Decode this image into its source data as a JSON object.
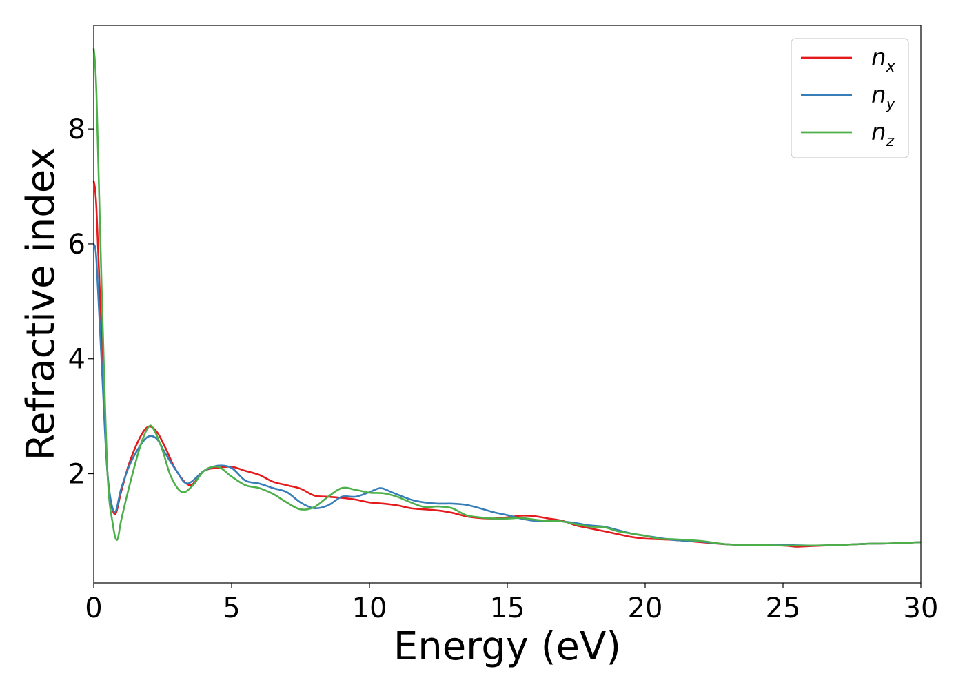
{
  "chart_data": {
    "type": "line",
    "title": "",
    "xlabel": "Energy (eV)",
    "ylabel": "Refractive index",
    "xlim": [
      0,
      30
    ],
    "ylim": [
      0.1,
      9.8
    ],
    "xticks": [
      0,
      5,
      10,
      15,
      20,
      25,
      30
    ],
    "yticks": [
      2,
      4,
      6,
      8
    ],
    "grid": false,
    "legend_position": "top-right",
    "series": [
      {
        "name": "n_x",
        "label_main": "n",
        "label_sub": "x",
        "color": "#e41a1c",
        "x": [
          0,
          0.1,
          0.3,
          0.5,
          0.75,
          1.0,
          1.3,
          1.7,
          2.0,
          2.3,
          2.6,
          3.0,
          3.5,
          4.0,
          4.5,
          5.0,
          5.5,
          6.0,
          6.5,
          7.0,
          7.5,
          8.0,
          8.5,
          9.0,
          9.5,
          10.0,
          10.5,
          11.0,
          11.5,
          12.0,
          12.5,
          13.0,
          13.5,
          14.0,
          14.5,
          15.0,
          15.5,
          16.0,
          16.5,
          17.0,
          17.5,
          18.0,
          18.5,
          19.0,
          19.5,
          20.0,
          20.5,
          21.0,
          21.5,
          22.0,
          23.0,
          24.0,
          25.0,
          25.5,
          26.0,
          27.0,
          28.0,
          29.0,
          30.0
        ],
        "y": [
          7.1,
          6.6,
          4.2,
          2.0,
          1.3,
          1.7,
          2.2,
          2.65,
          2.82,
          2.72,
          2.45,
          2.05,
          1.8,
          2.05,
          2.1,
          2.12,
          2.05,
          1.98,
          1.86,
          1.8,
          1.74,
          1.62,
          1.6,
          1.58,
          1.55,
          1.5,
          1.48,
          1.45,
          1.4,
          1.38,
          1.36,
          1.32,
          1.26,
          1.23,
          1.22,
          1.24,
          1.27,
          1.26,
          1.22,
          1.18,
          1.1,
          1.05,
          1.0,
          0.95,
          0.9,
          0.87,
          0.86,
          0.85,
          0.83,
          0.81,
          0.77,
          0.76,
          0.75,
          0.73,
          0.74,
          0.76,
          0.78,
          0.79,
          0.81
        ]
      },
      {
        "name": "n_y",
        "label_main": "n",
        "label_sub": "y",
        "color": "#377eb8",
        "x": [
          0,
          0.1,
          0.3,
          0.5,
          0.75,
          1.0,
          1.3,
          1.7,
          2.0,
          2.3,
          2.6,
          3.0,
          3.4,
          4.0,
          4.5,
          5.0,
          5.5,
          6.0,
          6.5,
          7.0,
          7.5,
          8.0,
          8.5,
          9.0,
          9.5,
          10.0,
          10.4,
          10.8,
          11.5,
          12.0,
          12.5,
          13.0,
          13.5,
          14.0,
          14.5,
          15.0,
          15.5,
          16.0,
          16.5,
          17.0,
          17.5,
          18.0,
          18.5,
          19.0,
          19.5,
          20.0,
          21.0,
          22.0,
          23.0,
          24.0,
          25.0,
          26.0,
          27.0,
          28.0,
          29.0,
          30.0
        ],
        "y": [
          6.0,
          5.7,
          3.8,
          2.0,
          1.33,
          1.75,
          2.15,
          2.5,
          2.65,
          2.6,
          2.35,
          2.05,
          1.83,
          2.05,
          2.14,
          2.1,
          1.88,
          1.83,
          1.75,
          1.68,
          1.5,
          1.4,
          1.45,
          1.6,
          1.6,
          1.68,
          1.75,
          1.68,
          1.55,
          1.5,
          1.48,
          1.48,
          1.46,
          1.4,
          1.33,
          1.28,
          1.22,
          1.18,
          1.18,
          1.17,
          1.14,
          1.1,
          1.08,
          1.02,
          0.96,
          0.92,
          0.85,
          0.82,
          0.77,
          0.76,
          0.76,
          0.75,
          0.76,
          0.78,
          0.79,
          0.81
        ]
      },
      {
        "name": "n_z",
        "label_main": "n",
        "label_sub": "z",
        "color": "#4daf4a",
        "x": [
          0,
          0.1,
          0.3,
          0.5,
          0.7,
          0.85,
          1.0,
          1.3,
          1.7,
          2.0,
          2.2,
          2.5,
          2.8,
          3.2,
          3.6,
          4.0,
          4.5,
          5.0,
          5.5,
          6.0,
          6.5,
          7.0,
          7.5,
          8.0,
          8.5,
          9.0,
          9.5,
          10.0,
          10.5,
          11.0,
          11.5,
          12.0,
          12.5,
          13.0,
          13.5,
          14.0,
          14.5,
          15.0,
          15.5,
          16.0,
          16.5,
          17.0,
          17.5,
          18.0,
          18.5,
          19.0,
          19.5,
          20.0,
          20.5,
          21.0,
          22.0,
          23.0,
          24.0,
          25.0,
          26.0,
          27.0,
          28.0,
          29.0,
          30.0
        ],
        "y": [
          9.4,
          8.6,
          5.0,
          2.0,
          1.1,
          0.85,
          1.2,
          1.8,
          2.5,
          2.82,
          2.75,
          2.4,
          1.95,
          1.68,
          1.8,
          2.05,
          2.12,
          1.95,
          1.8,
          1.75,
          1.65,
          1.5,
          1.38,
          1.42,
          1.6,
          1.75,
          1.72,
          1.67,
          1.66,
          1.6,
          1.5,
          1.42,
          1.43,
          1.4,
          1.28,
          1.24,
          1.22,
          1.22,
          1.23,
          1.2,
          1.18,
          1.17,
          1.12,
          1.08,
          1.07,
          1.0,
          0.96,
          0.92,
          0.87,
          0.86,
          0.83,
          0.77,
          0.76,
          0.75,
          0.75,
          0.76,
          0.78,
          0.79,
          0.81
        ]
      }
    ]
  }
}
